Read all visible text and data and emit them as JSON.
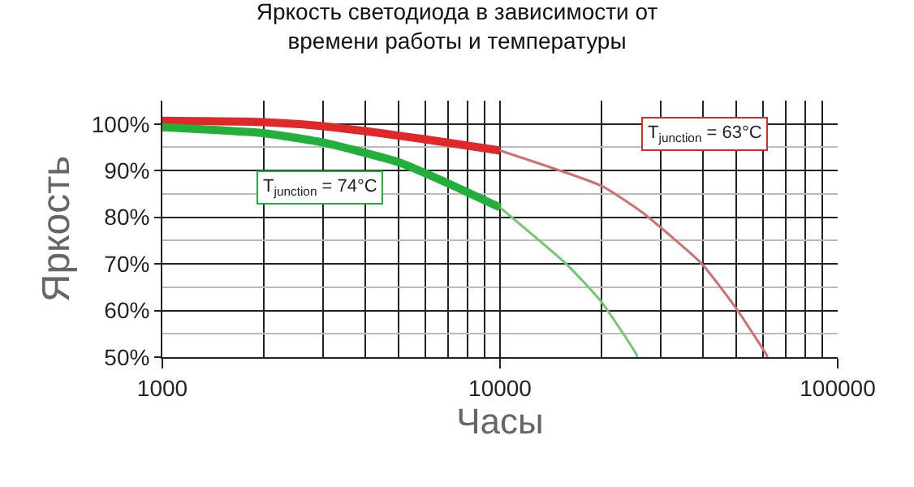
{
  "chart_data": {
    "type": "line",
    "title": "Яркость светодиода в зависимости от\nвремени работы и температуры",
    "xlabel": "Часы",
    "ylabel": "Яркость",
    "log": "x",
    "xlim": [
      1000,
      100000
    ],
    "xticks": [
      1000,
      10000,
      100000
    ],
    "ylim": [
      50,
      105
    ],
    "yticks": [
      {
        "value": 50,
        "label": "50%"
      },
      {
        "value": 60,
        "label": "60%"
      },
      {
        "value": 70,
        "label": "70%"
      },
      {
        "value": 80,
        "label": "80%"
      },
      {
        "value": 90,
        "label": "90%"
      },
      {
        "value": 100,
        "label": "100%"
      }
    ],
    "grid": true,
    "legend": false,
    "series": [
      {
        "name": "T$_{junction}$ = 63°C",
        "color": "#e02828",
        "x": [
          1000,
          2000,
          3000,
          5000,
          7000,
          10000
        ],
        "values": [
          100.7,
          100.4,
          99.5,
          97.5,
          96,
          94.3
        ]
      },
      {
        "color": "#d07070",
        "x": [
          10000,
          20000,
          26300,
          39600,
          50000,
          60700,
          62000
        ],
        "values": [
          94.3,
          86.7,
          81.1,
          70,
          60.5,
          51.2,
          50
        ]
      },
      {
        "name": "T$_{junction}$ = 74°C",
        "color": "#22b03a",
        "x": [
          1000,
          2000,
          3000,
          5000,
          7000,
          10000
        ],
        "values": [
          99.3,
          98,
          96,
          91.8,
          87.3,
          82.1
        ]
      },
      {
        "color": "#70c870",
        "x": [
          10000,
          15700,
          19950,
          25300,
          25500
        ],
        "values": [
          82.1,
          70,
          61.9,
          50.7,
          50
        ]
      }
    ]
  }
}
